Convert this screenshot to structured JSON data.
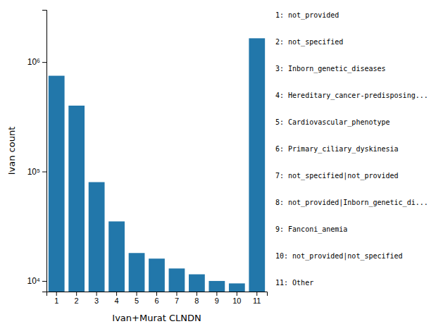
{
  "chart_data": {
    "type": "bar",
    "xlabel": "Ivan+Murat CLNDN",
    "ylabel": "Ivan count",
    "categories": [
      1,
      2,
      3,
      4,
      5,
      6,
      7,
      8,
      9,
      10,
      11
    ],
    "values": [
      750000,
      400000,
      80000,
      35000,
      18000,
      16000,
      13000,
      11500,
      10000,
      9500,
      1650000
    ],
    "color": "#2277aa",
    "log": "y",
    "ylim": [
      8000,
      3000000
    ],
    "yticks": [
      {
        "value": 10000,
        "label": "10⁴"
      },
      {
        "value": 100000,
        "label": "10⁵"
      },
      {
        "value": 1000000,
        "label": "10⁶"
      }
    ],
    "grid": false,
    "annotations": [
      "1: not_provided",
      "2: not_specified",
      "3: Inborn_genetic_diseases",
      "4: Hereditary_cancer-predisposing...",
      "5: Cardiovascular_phenotype",
      "6: Primary_ciliary_dyskinesia",
      "7: not_specified|not_provided",
      "8: not_provided|Inborn_genetic_di...",
      "9: Fanconi_anemia",
      "10: not_provided|not_specified",
      "11: Other"
    ]
  }
}
